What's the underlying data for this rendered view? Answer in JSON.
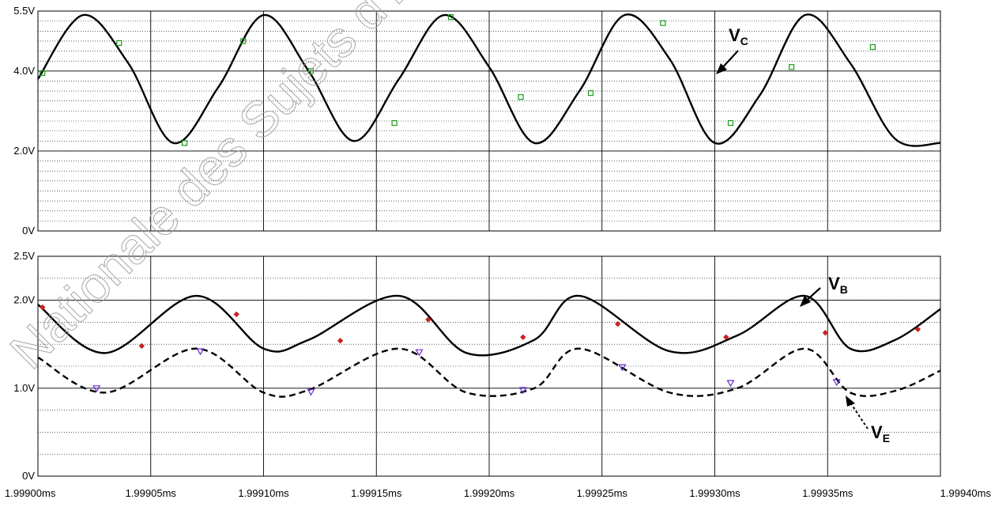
{
  "watermark_text": "Nationale des Sujets d'Ex... Rése...",
  "chart_data": [
    {
      "type": "line",
      "ylim": [
        0,
        5.5
      ],
      "ytick_labels": [
        "0V",
        "2.0V",
        "4.0V",
        "5.5V"
      ],
      "ytick_values": [
        0,
        2.0,
        4.0,
        5.5
      ],
      "xlim": [
        1.999,
        1.9994
      ],
      "grid": true,
      "series": [
        {
          "name": "C",
          "style": "solid",
          "marker": "square",
          "marker_color": "#1a9a1a",
          "x": [
            1.999,
            1.99902,
            1.99904,
            1.99906,
            1.99908,
            1.9991,
            1.99912,
            1.99914,
            1.99916,
            1.99918,
            1.9992,
            1.99922,
            1.99924,
            1.99926,
            1.99928,
            1.9993,
            1.99932,
            1.99934,
            1.99936,
            1.99938,
            1.9994
          ],
          "y": [
            3.8,
            5.4,
            4.2,
            2.2,
            3.6,
            5.4,
            4.0,
            2.25,
            3.8,
            5.4,
            4.1,
            2.2,
            3.5,
            5.4,
            4.3,
            2.2,
            3.4,
            5.4,
            4.2,
            2.3,
            2.2
          ],
          "marker_x": [
            1.999002,
            1.999036,
            1.999065,
            1.999091,
            1.999121,
            1.999158,
            1.999183,
            1.999214,
            1.999245,
            1.999277,
            1.999307,
            1.999334,
            1.99937
          ],
          "marker_y": [
            3.95,
            4.7,
            2.2,
            4.75,
            4.0,
            2.7,
            5.35,
            3.35,
            3.45,
            5.2,
            2.7,
            4.1,
            4.6
          ]
        }
      ],
      "annotations": [
        {
          "label": "V",
          "sub": "C"
        }
      ]
    },
    {
      "type": "line",
      "ylim": [
        0,
        2.5
      ],
      "ytick_labels": [
        "0V",
        "1.0V",
        "2.0V",
        "2.5V"
      ],
      "ytick_values": [
        0,
        1.0,
        2.0,
        2.5
      ],
      "xlim": [
        1.999,
        1.9994
      ],
      "xtick_labels": [
        "1.99900ms",
        "1.99905ms",
        "1.99910ms",
        "1.99915ms",
        "1.99920ms",
        "1.99925ms",
        "1.99930ms",
        "1.99935ms",
        "1.99940ms"
      ],
      "xtick_values": [
        1.999,
        1.99905,
        1.9991,
        1.99915,
        1.9992,
        1.99925,
        1.9993,
        1.99935,
        1.9994
      ],
      "grid": true,
      "series": [
        {
          "name": "B",
          "style": "solid",
          "marker": "diamond",
          "marker_color": "#cc2222",
          "x": [
            1.999,
            1.99903,
            1.99907,
            1.9991,
            1.99912,
            1.99916,
            1.99919,
            1.99922,
            1.99924,
            1.99928,
            1.99931,
            1.99934,
            1.99936,
            1.99938,
            1.9994
          ],
          "y": [
            1.95,
            1.4,
            2.05,
            1.45,
            1.55,
            2.05,
            1.4,
            1.55,
            2.05,
            1.42,
            1.6,
            2.05,
            1.45,
            1.55,
            1.9
          ],
          "marker_x": [
            1.999002,
            1.999046,
            1.999088,
            1.999134,
            1.999173,
            1.999215,
            1.999257,
            1.999305,
            1.999349,
            1.99939
          ],
          "marker_y": [
            1.92,
            1.48,
            1.84,
            1.54,
            1.78,
            1.58,
            1.73,
            1.58,
            1.63,
            1.67
          ]
        },
        {
          "name": "E",
          "style": "dashed",
          "marker": "triangle",
          "marker_color": "#6a2acc",
          "x": [
            1.999,
            1.99903,
            1.99907,
            1.9991,
            1.99912,
            1.99916,
            1.99919,
            1.99922,
            1.99924,
            1.99928,
            1.99931,
            1.99934,
            1.99936,
            1.99938,
            1.9994
          ],
          "y": [
            1.35,
            0.95,
            1.45,
            0.95,
            0.98,
            1.45,
            0.95,
            1.0,
            1.45,
            0.95,
            1.0,
            1.45,
            0.95,
            0.97,
            1.2
          ],
          "marker_x": [
            1.999026,
            1.999072,
            1.999121,
            1.999169,
            1.999215,
            1.999259,
            1.999307,
            1.999354
          ],
          "marker_y": [
            1.0,
            1.42,
            0.96,
            1.41,
            0.98,
            1.24,
            1.06,
            1.07
          ]
        }
      ],
      "annotations": [
        {
          "label": "V",
          "sub": "B"
        },
        {
          "label": "V",
          "sub": "E"
        }
      ]
    }
  ]
}
